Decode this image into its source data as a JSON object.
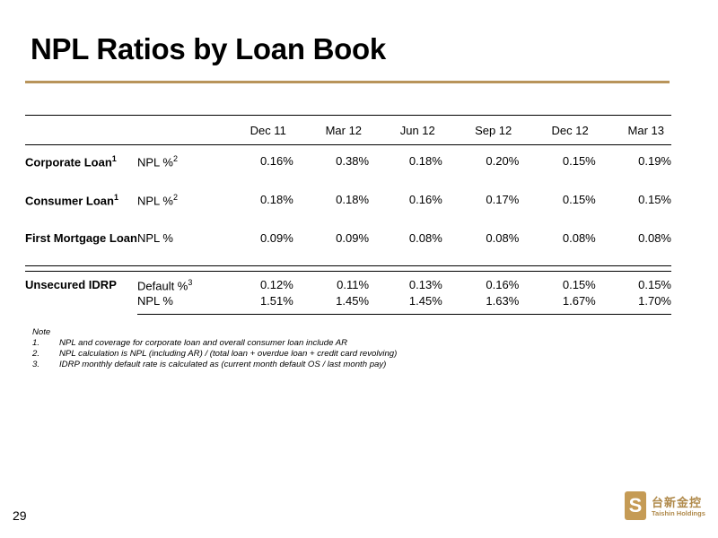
{
  "title": "NPL Ratios by Loan Book",
  "table": {
    "columns": [
      "Dec 11",
      "Mar 12",
      "Jun 12",
      "Sep 12",
      "Dec 12",
      "Mar 13"
    ],
    "rows": [
      {
        "segment": "Corporate Loan",
        "segment_sup": "1",
        "metric": "NPL %",
        "metric_sup": "2",
        "values": [
          "0.16%",
          "0.38%",
          "0.18%",
          "0.20%",
          "0.15%",
          "0.19%"
        ]
      },
      {
        "segment": "Consumer Loan",
        "segment_sup": "1",
        "metric": "NPL %",
        "metric_sup": "2",
        "values": [
          "0.18%",
          "0.18%",
          "0.16%",
          "0.17%",
          "0.15%",
          "0.15%"
        ]
      },
      {
        "segment": "First Mortgage Loan",
        "segment_sup": "",
        "metric": "NPL %",
        "metric_sup": "",
        "values": [
          "0.09%",
          "0.09%",
          "0.08%",
          "0.08%",
          "0.08%",
          "0.08%"
        ]
      }
    ],
    "unsecured": {
      "segment": "Unsecured IDRP",
      "rows": [
        {
          "metric": "Default %",
          "metric_sup": "3",
          "values": [
            "0.12%",
            "0.11%",
            "0.13%",
            "0.16%",
            "0.15%",
            "0.15%"
          ]
        },
        {
          "metric": "NPL %",
          "metric_sup": "",
          "values": [
            "1.51%",
            "1.45%",
            "1.45%",
            "1.63%",
            "1.67%",
            "1.70%"
          ]
        }
      ]
    }
  },
  "notes": {
    "heading": "Note",
    "items": [
      {
        "num": "1.",
        "text": "NPL and coverage for corporate loan and overall consumer loan include AR"
      },
      {
        "num": "2.",
        "text": "NPL calculation is NPL (including AR) / (total loan + overdue loan + credit card revolving)"
      },
      {
        "num": "3.",
        "text": "IDRP monthly default rate is calculated as (current month default OS / last month pay)"
      }
    ]
  },
  "page_number": "29",
  "logo": {
    "chinese": "台新金控",
    "english": "Taishin Holdings",
    "mark": "S"
  },
  "colors": {
    "accent": "#b8945a"
  }
}
